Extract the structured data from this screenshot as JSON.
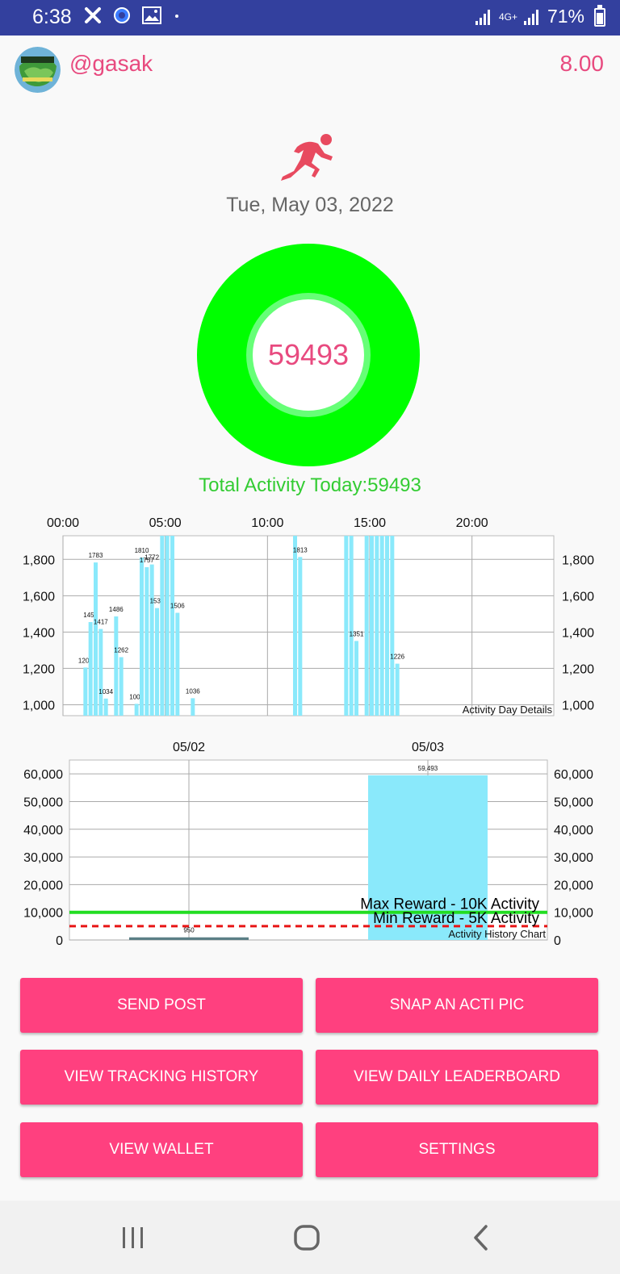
{
  "status_bar": {
    "time": "6:38",
    "network": "4G+",
    "battery": "71%",
    "icons": [
      "close-x-icon",
      "circle-app-icon",
      "gallery-icon",
      "dot-icon",
      "signal-icon",
      "signal-icon",
      "battery-icon"
    ]
  },
  "header": {
    "username": "@gasak",
    "balance": "8.00",
    "avatar_icon": "community-logo-avatar"
  },
  "main": {
    "activity_icon": "running-man-icon",
    "date": "Tue, May 03, 2022",
    "ring_value": "59493",
    "total_label": "Total Activity Today:59493"
  },
  "colors": {
    "accent_pink": "#e84a7f",
    "button_pink": "#ff407f",
    "ring_green": "#00ff00",
    "status_bar_blue": "#33409e",
    "bar_cyan": "#8ae9fb",
    "min_line_red": "#e81515"
  },
  "chart_data": [
    {
      "type": "bar",
      "title": "",
      "legend_label": "Activity Day Details",
      "x_ticks": [
        "00:00",
        "05:00",
        "10:00",
        "15:00",
        "20:00"
      ],
      "y_ticks": [
        "1,000",
        "1,200",
        "1,400",
        "1,600",
        "1,800"
      ],
      "ylim": [
        940,
        1930
      ],
      "xlim_hours": [
        0,
        24
      ],
      "grid": true,
      "bars": [
        {
          "t": 1.0,
          "v": 1205,
          "label": "1205"
        },
        {
          "t": 1.25,
          "v": 1455,
          "label": "1455"
        },
        {
          "t": 1.5,
          "v": 1783,
          "label": "1783"
        },
        {
          "t": 1.75,
          "v": 1417,
          "label": "1417"
        },
        {
          "t": 2.0,
          "v": 1034,
          "label": "1034"
        },
        {
          "t": 2.5,
          "v": 1486,
          "label": "1486"
        },
        {
          "t": 2.75,
          "v": 1262,
          "label": "1262"
        },
        {
          "t": 3.5,
          "v": 1005,
          "label": "1005"
        },
        {
          "t": 3.75,
          "v": 1810,
          "label": "1810"
        },
        {
          "t": 4.0,
          "v": 1757,
          "label": "1757"
        },
        {
          "t": 4.25,
          "v": 1772,
          "label": "1772"
        },
        {
          "t": 4.5,
          "v": 1532,
          "label": "1532"
        },
        {
          "t": 4.75,
          "v": 1940,
          "label": ""
        },
        {
          "t": 5.0,
          "v": 1940,
          "label": ""
        },
        {
          "t": 5.25,
          "v": 1940,
          "label": ""
        },
        {
          "t": 5.5,
          "v": 1506,
          "label": "1506"
        },
        {
          "t": 6.25,
          "v": 1036,
          "label": "1036"
        },
        {
          "t": 11.25,
          "v": 1940,
          "label": ""
        },
        {
          "t": 11.5,
          "v": 1813,
          "label": "1813"
        },
        {
          "t": 13.75,
          "v": 1940,
          "label": ""
        },
        {
          "t": 14.0,
          "v": 1940,
          "label": ""
        },
        {
          "t": 14.25,
          "v": 1351,
          "label": "1351"
        },
        {
          "t": 14.75,
          "v": 1940,
          "label": ""
        },
        {
          "t": 15.0,
          "v": 1940,
          "label": ""
        },
        {
          "t": 15.25,
          "v": 1940,
          "label": ""
        },
        {
          "t": 15.5,
          "v": 1940,
          "label": ""
        },
        {
          "t": 15.75,
          "v": 1940,
          "label": ""
        },
        {
          "t": 16.0,
          "v": 1940,
          "label": ""
        },
        {
          "t": 16.25,
          "v": 1226,
          "label": "1226"
        }
      ]
    },
    {
      "type": "bar",
      "title": "",
      "legend_label": "Activity History Chart",
      "categories": [
        "05/02",
        "05/03"
      ],
      "values": [
        950,
        59493
      ],
      "value_labels": [
        "950",
        "59,493"
      ],
      "y_ticks": [
        "0",
        "10,000",
        "20,000",
        "30,000",
        "40,000",
        "50,000",
        "60,000"
      ],
      "ylim": [
        0,
        65000
      ],
      "grid": true,
      "reference_lines": [
        {
          "label": "Max Reward - 10K Activity",
          "value": 10000,
          "style": "solid",
          "color": "#22dd22"
        },
        {
          "label": "Min Reward - 5K Activity",
          "value": 5000,
          "style": "dashed",
          "color": "#e81515"
        }
      ]
    }
  ],
  "buttons": [
    {
      "label": "SEND POST"
    },
    {
      "label": "SNAP AN ACTI PIC"
    },
    {
      "label": "VIEW TRACKING HISTORY"
    },
    {
      "label": "VIEW DAILY LEADERBOARD"
    },
    {
      "label": "VIEW WALLET"
    },
    {
      "label": "SETTINGS"
    }
  ],
  "nav": {
    "icons": [
      "recent-apps-icon",
      "home-icon",
      "back-icon"
    ]
  }
}
